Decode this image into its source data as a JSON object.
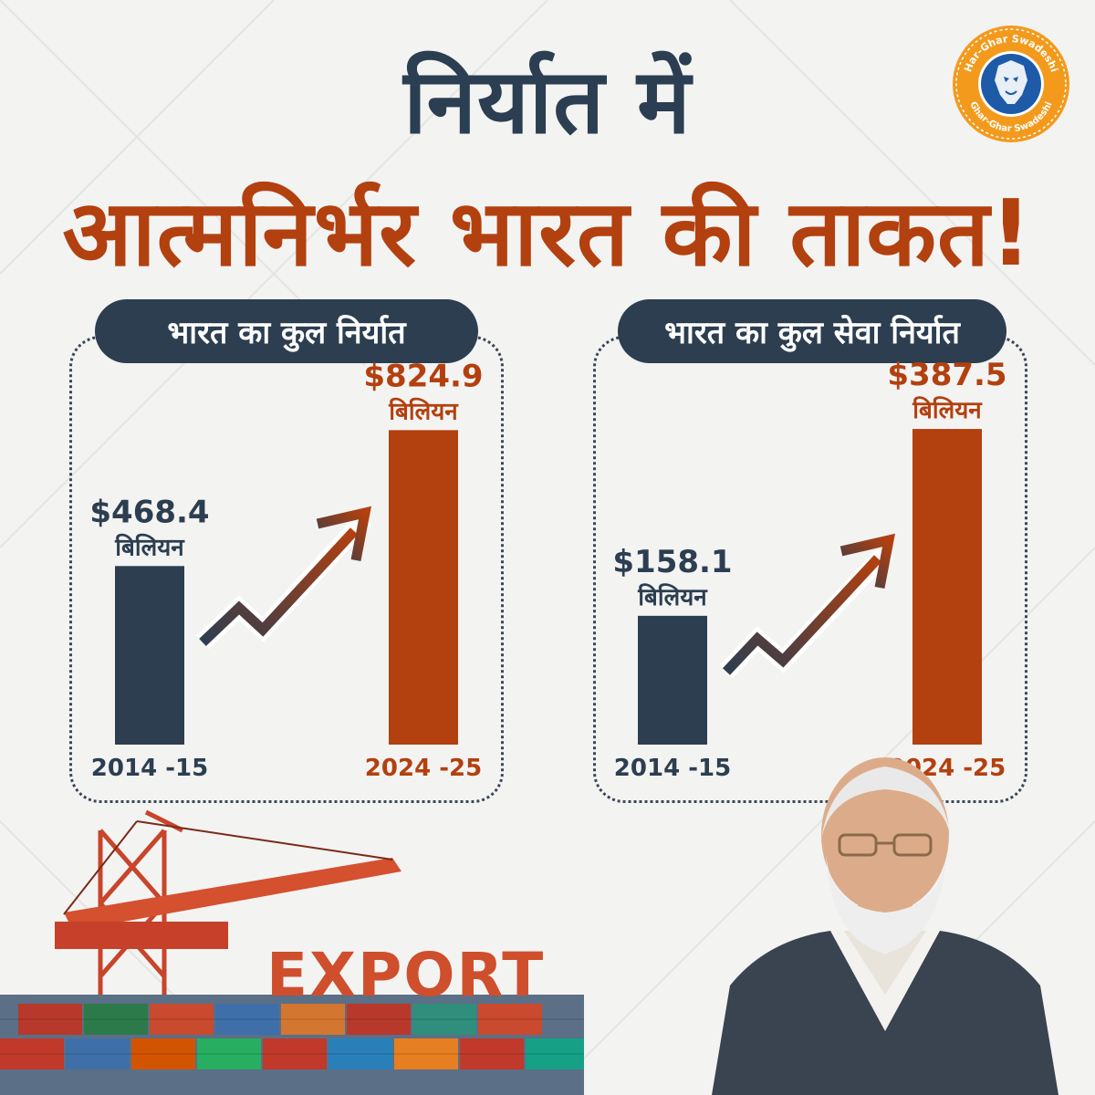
{
  "title": {
    "line1": "निर्यात में",
    "line2": "आत्मनिर्भर भारत की ताकत!"
  },
  "logo": {
    "text_top": "Har-Ghar Swadeshi",
    "text_bottom": "Ghar-Ghar Swadeshi",
    "icon": "lion-head-icon",
    "colors": {
      "ring": "#f39a1d",
      "center": "#1d5aa8"
    }
  },
  "colors": {
    "navy": "#2c3e50",
    "rust": "#b3400f",
    "export_text": "#cf4e2c"
  },
  "panels": [
    {
      "title": "भारत का कुल निर्यात"
    },
    {
      "title": "भारत का कुल सेवा निर्यात"
    }
  ],
  "chart_data": [
    {
      "type": "bar",
      "title": "भारत का कुल निर्यात",
      "categories": [
        "2014 -15",
        "2024 -25"
      ],
      "values": [
        468.4,
        824.9
      ],
      "value_labels": [
        "$468.4",
        "$824.9"
      ],
      "unit_label": "बिलियन",
      "bar_colors": [
        "#2c3e50",
        "#b3400f"
      ],
      "ylim": [
        0,
        900
      ]
    },
    {
      "type": "bar",
      "title": "भारत का कुल सेवा निर्यात",
      "categories": [
        "2014 -15",
        "2024 -25"
      ],
      "values": [
        158.1,
        387.5
      ],
      "value_labels": [
        "$158.1",
        "$387.5"
      ],
      "unit_label": "बिलियन",
      "bar_colors": [
        "#2c3e50",
        "#b3400f"
      ],
      "ylim": [
        0,
        410
      ]
    }
  ],
  "export_label": "EXPORT"
}
